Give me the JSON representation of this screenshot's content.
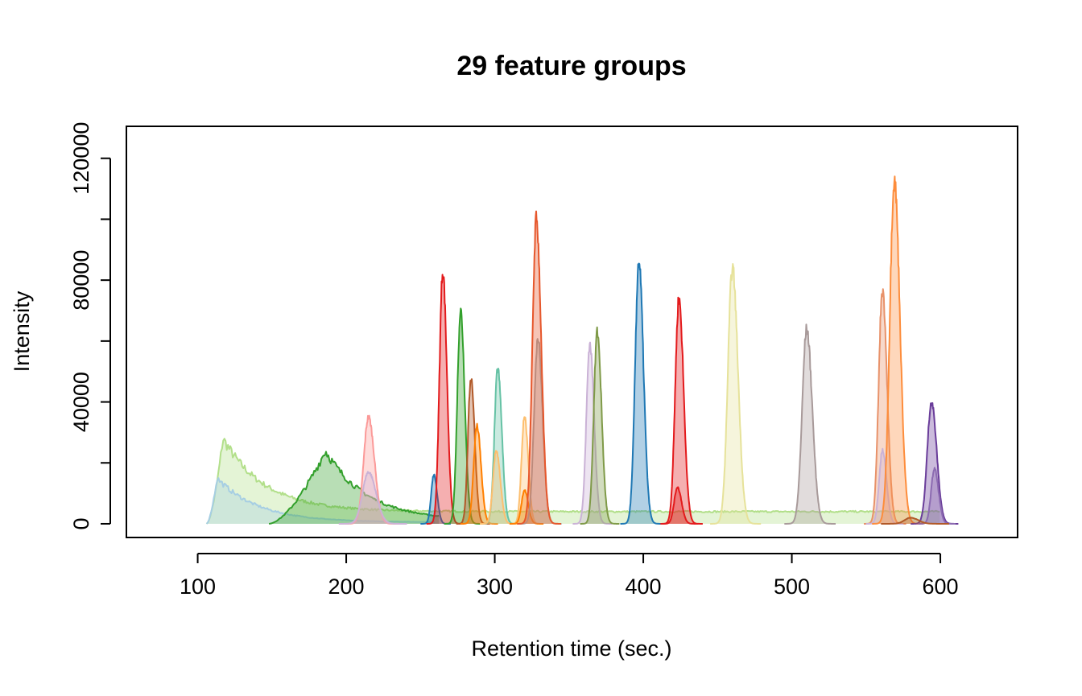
{
  "chart_data": {
    "type": "area",
    "title": "29 feature groups",
    "xlabel": "Retention time (sec.)",
    "ylabel": "Intensity",
    "xlim": [
      52,
      652
    ],
    "ylim": [
      -4500,
      130500
    ],
    "xticks": [
      100,
      200,
      300,
      400,
      500,
      600
    ],
    "yticks": [
      0,
      40000,
      80000,
      120000
    ],
    "yticks_minor": [
      20000,
      60000,
      100000
    ],
    "xtick_labels": [
      "100",
      "200",
      "300",
      "400",
      "500",
      "600"
    ],
    "ytick_labels": [
      "0",
      "40000",
      "80000",
      "120000"
    ],
    "grid": false,
    "legend": "none",
    "series": [
      {
        "color": "#b2df8a",
        "shape": "tail",
        "start": 106,
        "apex": 117,
        "end": 600,
        "height": 28000,
        "base": 4000
      },
      {
        "color": "#a6cee3",
        "shape": "tail",
        "start": 106,
        "apex": 113,
        "end": 260,
        "height": 15000,
        "base": 500
      },
      {
        "color": "#33a02c",
        "shape": "tail",
        "start": 148,
        "apex": 186,
        "end": 263,
        "height": 24000,
        "base": 1000
      },
      {
        "color": "#fb9a99",
        "shape": "peak",
        "apex": 215,
        "width": 3.2,
        "height": 35000
      },
      {
        "color": "#cab2d6",
        "shape": "peak",
        "apex": 215,
        "width": 4,
        "height": 17000
      },
      {
        "color": "#1f78b4",
        "shape": "peak",
        "apex": 259,
        "width": 1.8,
        "height": 16000
      },
      {
        "color": "#e31a1c",
        "shape": "peak",
        "apex": 265,
        "width": 2.2,
        "height": 83000
      },
      {
        "color": "#33a02c",
        "shape": "peak",
        "apex": 277,
        "width": 2.2,
        "height": 70000
      },
      {
        "color": "#b15928",
        "shape": "peak",
        "apex": 284,
        "width": 2,
        "height": 48000
      },
      {
        "color": "#ff7f00",
        "shape": "peak",
        "apex": 288,
        "width": 2.2,
        "height": 32000
      },
      {
        "color": "#66c2a5",
        "shape": "peak",
        "apex": 302,
        "width": 2.2,
        "height": 51000
      },
      {
        "color": "#fdbf6f",
        "shape": "peak",
        "apex": 301,
        "width": 2.2,
        "height": 24000
      },
      {
        "color": "#fdbf6f",
        "shape": "peak",
        "apex": 320,
        "width": 2,
        "height": 35000
      },
      {
        "color": "#ff7f00",
        "shape": "peak",
        "apex": 320,
        "width": 2,
        "height": 11000
      },
      {
        "color": "#a6a6a6",
        "shape": "peak",
        "apex": 329,
        "width": 2.5,
        "height": 61000
      },
      {
        "color": "#e6572c",
        "shape": "peak",
        "apex": 328,
        "width": 2.6,
        "height": 100000
      },
      {
        "color": "#cab2d6",
        "shape": "peak",
        "apex": 364,
        "width": 2.3,
        "height": 59000
      },
      {
        "color": "#7f9a48",
        "shape": "peak",
        "apex": 369,
        "width": 2.3,
        "height": 63000
      },
      {
        "color": "#1f78b4",
        "shape": "peak",
        "apex": 397,
        "width": 2.5,
        "height": 86000
      },
      {
        "color": "#e31a1c",
        "shape": "peak",
        "apex": 424,
        "width": 2.5,
        "height": 74000
      },
      {
        "color": "#e31a1c",
        "shape": "peak",
        "apex": 423,
        "width": 2.2,
        "height": 12000
      },
      {
        "color": "#e6e29a",
        "shape": "peak",
        "apex": 460,
        "width": 3,
        "height": 84000
      },
      {
        "color": "#a89a9a",
        "shape": "peak",
        "apex": 510,
        "width": 3,
        "height": 64000
      },
      {
        "color": "#e8926a",
        "shape": "peak",
        "apex": 561,
        "width": 2.5,
        "height": 77000
      },
      {
        "color": "#cab2d6",
        "shape": "peak",
        "apex": 561,
        "width": 2.2,
        "height": 24000
      },
      {
        "color": "#fd8d3c",
        "shape": "peak",
        "apex": 569,
        "width": 3,
        "height": 113000
      },
      {
        "color": "#6a3d9a",
        "shape": "peak",
        "apex": 594,
        "width": 2.8,
        "height": 40000
      },
      {
        "color": "#8c6bb1",
        "shape": "peak",
        "apex": 596,
        "width": 2.2,
        "height": 18000
      },
      {
        "color": "#b15928",
        "shape": "peak",
        "apex": 580,
        "width": 4,
        "height": 2000
      }
    ]
  }
}
